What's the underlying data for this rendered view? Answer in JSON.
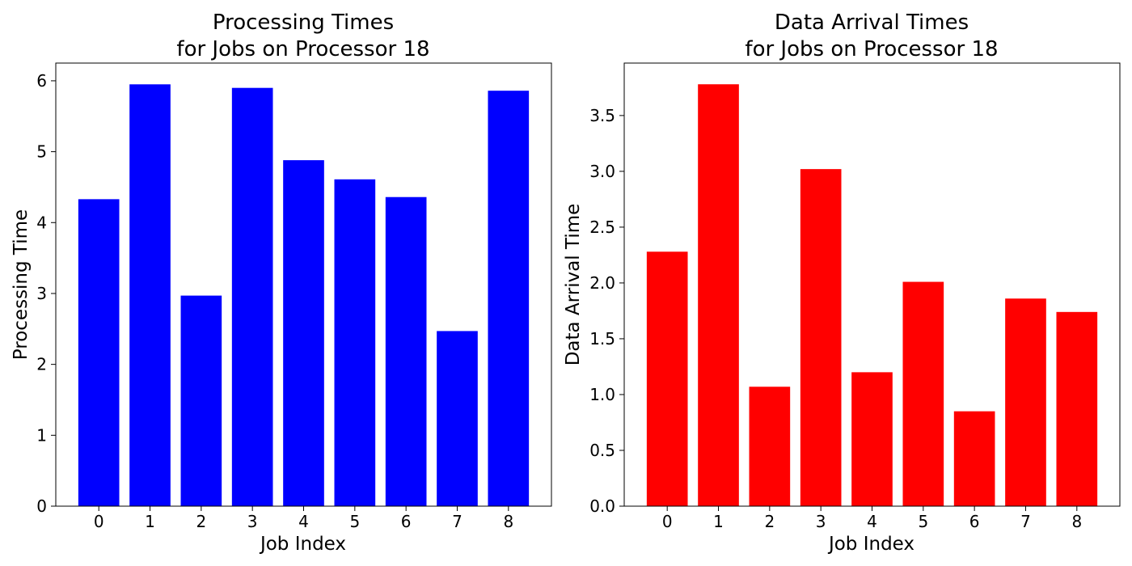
{
  "chart_data": [
    {
      "type": "bar",
      "title_line1": "Processing Times",
      "title_line2": "for Jobs on Processor 18",
      "xlabel": "Job Index",
      "ylabel": "Processing Time",
      "categories": [
        "0",
        "1",
        "2",
        "3",
        "4",
        "5",
        "6",
        "7",
        "8"
      ],
      "values": [
        4.33,
        5.95,
        2.97,
        5.9,
        4.88,
        4.61,
        4.36,
        2.47,
        5.86
      ],
      "ylim": [
        0,
        6.25
      ],
      "yticks": [
        0,
        1,
        2,
        3,
        4,
        5,
        6
      ],
      "ytick_labels": [
        "0",
        "1",
        "2",
        "3",
        "4",
        "5",
        "6"
      ],
      "color": "#0000ff",
      "grid": false,
      "legend": "none"
    },
    {
      "type": "bar",
      "title_line1": "Data Arrival Times",
      "title_line2": "for Jobs on Processor 18",
      "xlabel": "Job Index",
      "ylabel": "Data Arrival Time",
      "categories": [
        "0",
        "1",
        "2",
        "3",
        "4",
        "5",
        "6",
        "7",
        "8"
      ],
      "values": [
        2.28,
        3.78,
        1.07,
        3.02,
        1.2,
        2.01,
        0.85,
        1.86,
        1.74
      ],
      "ylim": [
        0,
        3.97
      ],
      "yticks": [
        0,
        0.5,
        1,
        1.5,
        2,
        2.5,
        3,
        3.5
      ],
      "ytick_labels": [
        "0.0",
        "0.5",
        "1.0",
        "1.5",
        "2.0",
        "2.5",
        "3.0",
        "3.5"
      ],
      "color": "#ff0000",
      "grid": false,
      "legend": "none"
    }
  ]
}
